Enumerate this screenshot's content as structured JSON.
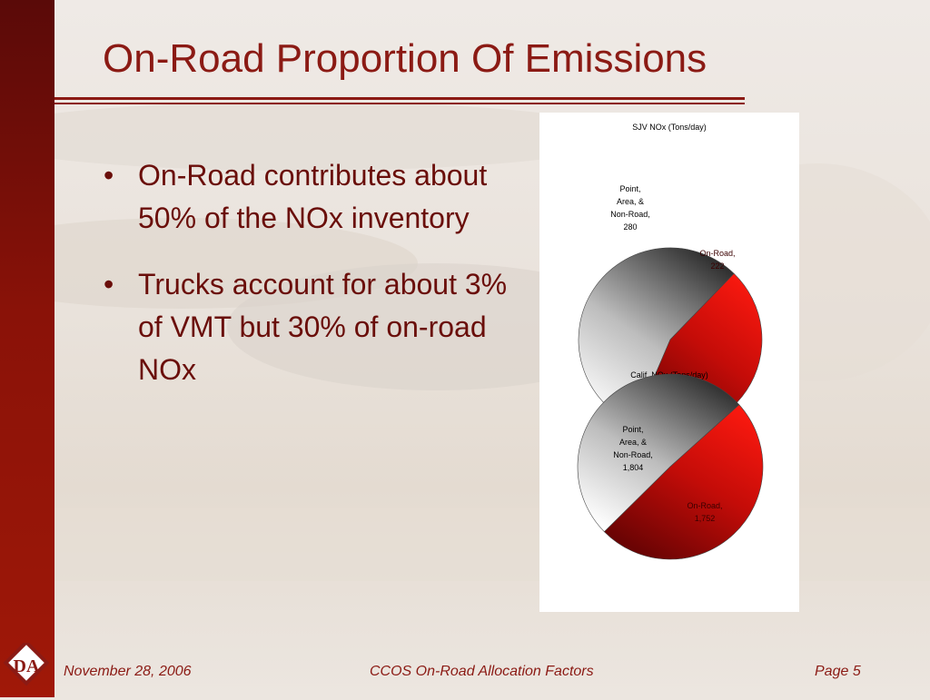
{
  "slide": {
    "title": "On-Road Proportion Of Emissions",
    "bullets": [
      {
        "text": "On-Road contributes about 50% of the NOx inventory"
      },
      {
        "text": "Trucks account for about 3% of VMT but 30% of on-road NOx"
      }
    ]
  },
  "chart_data": [
    {
      "type": "pie",
      "title": "SJV NOx (Tons/day)",
      "slices": [
        {
          "label": "Point, Area, & Non-Road,",
          "value": 280,
          "value_text": "280",
          "color": "#5a5a5a"
        },
        {
          "label": "On-Road,",
          "value": 222,
          "value_text": "222",
          "color": "#e0100e"
        }
      ]
    },
    {
      "type": "pie",
      "title": "Calif. NOx (Tons/day)",
      "slices": [
        {
          "label": "Point, Area, & Non-Road,",
          "value": 1804,
          "value_text": "1,804",
          "color": "#5a5a5a"
        },
        {
          "label": "On-Road,",
          "value": 1752,
          "value_text": "1,752",
          "color": "#e0100e"
        }
      ]
    }
  ],
  "footer": {
    "date": "November 28, 2006",
    "center": "CCOS On-Road Allocation Factors",
    "page": "Page 5"
  },
  "logo": {
    "text": "DA",
    "icon": "company-logo"
  },
  "colors": {
    "accent": "#8b1a14",
    "sidebar": "#8a1208"
  }
}
